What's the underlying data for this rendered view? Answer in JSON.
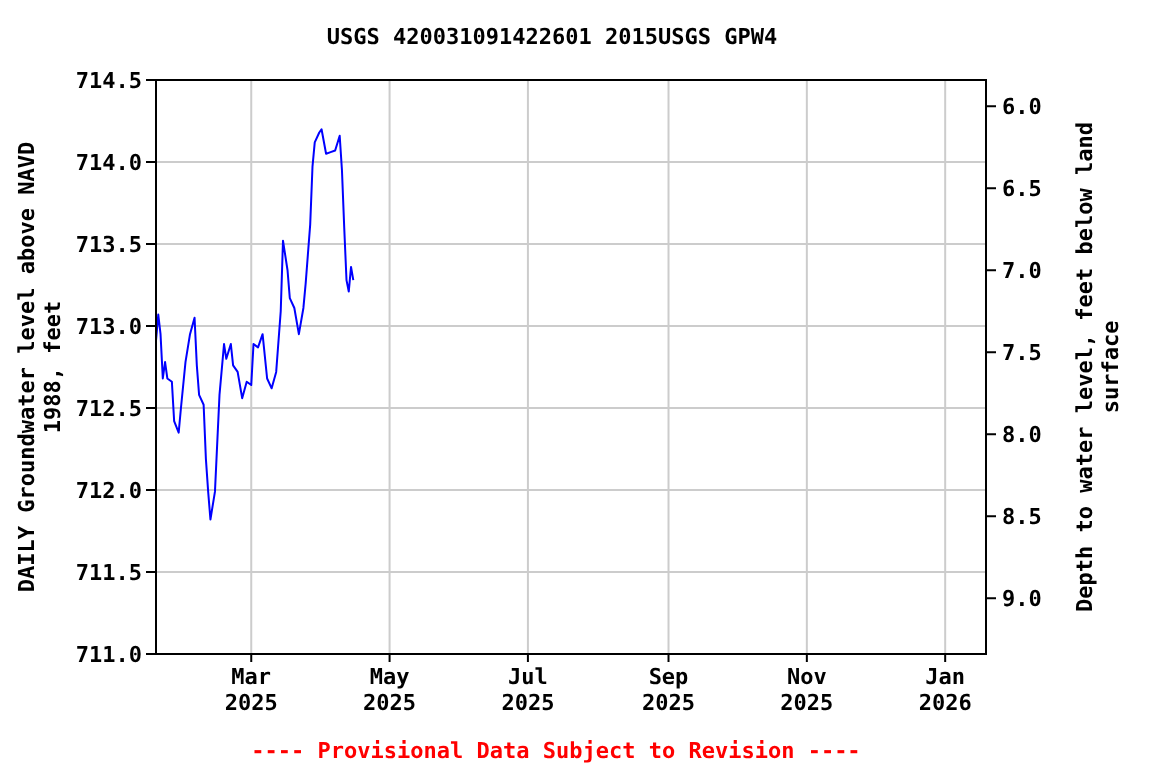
{
  "chart_data": {
    "type": "line",
    "title": "USGS 420031091422601 2015USGS GPW4",
    "ylabel": "DAILY Groundwater level above NAVD 1988, feet",
    "y2label": "Depth to water level, feet below land surface",
    "annotations": [
      "---- Provisional Data Subject to Revision ----"
    ],
    "x": [
      "2025-01-18",
      "2025-01-19",
      "2025-01-20",
      "2025-01-21",
      "2025-01-22",
      "2025-01-23",
      "2025-01-25",
      "2025-01-26",
      "2025-01-28",
      "2025-01-29",
      "2025-01-31",
      "2025-02-02",
      "2025-02-04",
      "2025-02-05",
      "2025-02-06",
      "2025-02-08",
      "2025-02-09",
      "2025-02-10",
      "2025-02-11",
      "2025-02-13",
      "2025-02-15",
      "2025-02-17",
      "2025-02-18",
      "2025-02-20",
      "2025-02-21",
      "2025-02-23",
      "2025-02-25",
      "2025-02-27",
      "2025-03-01",
      "2025-03-02",
      "2025-03-04",
      "2025-03-06",
      "2025-03-08",
      "2025-03-10",
      "2025-03-12",
      "2025-03-14",
      "2025-03-15",
      "2025-03-17",
      "2025-03-18",
      "2025-03-20",
      "2025-03-22",
      "2025-03-24",
      "2025-03-25",
      "2025-03-27",
      "2025-03-28",
      "2025-03-29",
      "2025-03-31",
      "2025-04-01",
      "2025-04-03",
      "2025-04-05",
      "2025-04-07",
      "2025-04-09",
      "2025-04-10",
      "2025-04-11",
      "2025-04-12",
      "2025-04-13",
      "2025-04-14",
      "2025-04-15"
    ],
    "series": [
      {
        "color": "#0000ff",
        "values": [
          712.91,
          713.07,
          712.95,
          712.68,
          712.78,
          712.68,
          712.66,
          712.42,
          712.35,
          712.5,
          712.78,
          712.95,
          713.05,
          712.76,
          712.58,
          712.52,
          712.19,
          711.99,
          711.82,
          711.99,
          712.58,
          712.89,
          712.8,
          712.89,
          712.76,
          712.72,
          712.56,
          712.66,
          712.64,
          712.89,
          712.87,
          712.95,
          712.68,
          712.62,
          712.72,
          713.09,
          713.52,
          713.34,
          713.17,
          713.11,
          712.95,
          713.11,
          713.26,
          713.62,
          713.97,
          714.12,
          714.18,
          714.2,
          714.05,
          714.06,
          714.07,
          714.16,
          713.95,
          713.6,
          713.28,
          713.21,
          713.36,
          713.28
        ]
      }
    ],
    "xlim": [
      "2025-01-18",
      "2026-01-19"
    ],
    "xticks": [
      {
        "value": "2025-03-01",
        "label": "Mar 2025"
      },
      {
        "value": "2025-05-01",
        "label": "May 2025"
      },
      {
        "value": "2025-07-01",
        "label": "Jul 2025"
      },
      {
        "value": "2025-09-01",
        "label": "Sep 2025"
      },
      {
        "value": "2025-11-01",
        "label": "Nov 2025"
      },
      {
        "value": "2026-01-01",
        "label": "Jan 2026"
      }
    ],
    "ylim": [
      711,
      714.5
    ],
    "yticks": [
      {
        "value": 711,
        "label": "711.0"
      },
      711.5,
      {
        "value": 712,
        "label": "712.0"
      },
      712.5,
      {
        "value": 713,
        "label": "713.0"
      },
      713.5,
      {
        "value": 714,
        "label": "714.0"
      },
      714.5
    ],
    "y2lim": [
      9.34,
      5.84
    ],
    "y2ticks": [
      {
        "value": 6,
        "label": "6.0"
      },
      6.5,
      {
        "value": 7,
        "label": "7.0"
      },
      7.5,
      {
        "value": 8,
        "label": "8.0"
      },
      8.5,
      {
        "value": 9,
        "label": "9.0"
      }
    ],
    "grid": true,
    "line_style": "solid",
    "marker": "none"
  }
}
